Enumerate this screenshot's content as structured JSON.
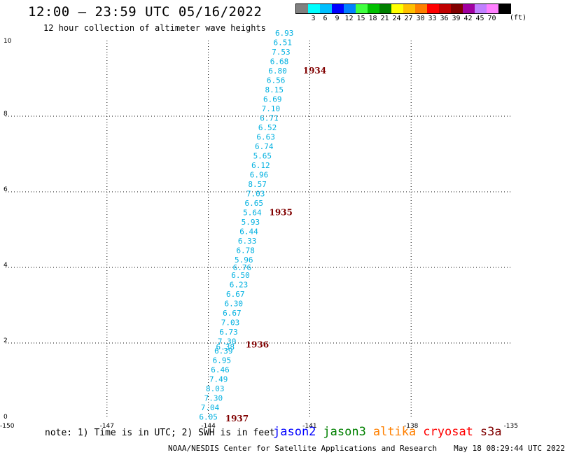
{
  "header": {
    "title": "12:00 – 23:59 UTC 05/16/2022",
    "subtitle": "12 hour collection of altimeter wave heights"
  },
  "color_scale": {
    "colors": [
      "#808080",
      "#00ffff",
      "#00bfff",
      "#0000ff",
      "#0080ff",
      "#40ff40",
      "#00c000",
      "#008000",
      "#ffff00",
      "#ffc000",
      "#ff8000",
      "#ff0000",
      "#c00000",
      "#800000",
      "#a000a0",
      "#c080ff",
      "#ff80ff",
      "#000000"
    ],
    "labels": [
      "3",
      "6",
      "9",
      "12",
      "15",
      "18",
      "21",
      "24",
      "27",
      "30",
      "33",
      "36",
      "39",
      "42",
      "45",
      "70"
    ],
    "unit": "(ft)"
  },
  "chart_data": {
    "type": "scatter",
    "xlim": [
      -150,
      -135
    ],
    "ylim": [
      0,
      10
    ],
    "x_ticks": [
      -150,
      -147,
      -144,
      -141,
      -138,
      -135
    ],
    "x_tick_labels": [
      "-150",
      "-147",
      "-144",
      "-141",
      "-138",
      "-135"
    ],
    "y_ticks": [
      0,
      2,
      4,
      6,
      8,
      10
    ],
    "y_tick_labels": [
      "0",
      "2",
      "4",
      "6",
      "8",
      "10"
    ],
    "grid": true,
    "series": [
      {
        "name": "jason2",
        "points": [
          {
            "x": -144.0,
            "y": 0.05,
            "label": "6.05"
          },
          {
            "x": -143.95,
            "y": 0.3,
            "label": "7.04"
          },
          {
            "x": -143.85,
            "y": 0.55,
            "label": "7.30"
          },
          {
            "x": -143.8,
            "y": 0.8,
            "label": "8.03"
          },
          {
            "x": -143.7,
            "y": 1.05,
            "label": "7.49"
          },
          {
            "x": -143.65,
            "y": 1.3,
            "label": "6.46"
          },
          {
            "x": -143.6,
            "y": 1.55,
            "label": "6.95"
          },
          {
            "x": -143.55,
            "y": 1.8,
            "label": "6.39"
          },
          {
            "x": -143.5,
            "y": 1.9,
            "label": "6.38"
          },
          {
            "x": -143.45,
            "y": 2.05,
            "label": "7.30"
          },
          {
            "x": -143.4,
            "y": 2.3,
            "label": "6.73"
          },
          {
            "x": -143.35,
            "y": 2.55,
            "label": "7.03"
          },
          {
            "x": -143.3,
            "y": 2.8,
            "label": "6.67"
          },
          {
            "x": -143.25,
            "y": 3.05,
            "label": "6.30"
          },
          {
            "x": -143.2,
            "y": 3.3,
            "label": "6.67"
          },
          {
            "x": -143.1,
            "y": 3.55,
            "label": "6.23"
          },
          {
            "x": -143.05,
            "y": 3.8,
            "label": "6.50"
          },
          {
            "x": -143.0,
            "y": 4.0,
            "label": "6.76"
          },
          {
            "x": -142.95,
            "y": 4.2,
            "label": "5.96"
          },
          {
            "x": -142.9,
            "y": 4.45,
            "label": "6.78"
          },
          {
            "x": -142.85,
            "y": 4.7,
            "label": "6.33"
          },
          {
            "x": -142.8,
            "y": 4.95,
            "label": "6.44"
          },
          {
            "x": -142.75,
            "y": 5.2,
            "label": "5.93"
          },
          {
            "x": -142.7,
            "y": 5.45,
            "label": "5.64"
          },
          {
            "x": -142.65,
            "y": 5.7,
            "label": "6.65"
          },
          {
            "x": -142.6,
            "y": 5.95,
            "label": "7.03"
          },
          {
            "x": -142.55,
            "y": 6.2,
            "label": "8.57"
          },
          {
            "x": -142.5,
            "y": 6.45,
            "label": "6.96"
          },
          {
            "x": -142.45,
            "y": 6.7,
            "label": "6.12"
          },
          {
            "x": -142.4,
            "y": 6.95,
            "label": "5.65"
          },
          {
            "x": -142.35,
            "y": 7.2,
            "label": "6.74"
          },
          {
            "x": -142.3,
            "y": 7.45,
            "label": "6.63"
          },
          {
            "x": -142.25,
            "y": 7.7,
            "label": "6.52"
          },
          {
            "x": -142.2,
            "y": 7.95,
            "label": "6.71"
          },
          {
            "x": -142.15,
            "y": 8.2,
            "label": "7.10"
          },
          {
            "x": -142.1,
            "y": 8.45,
            "label": "6.69"
          },
          {
            "x": -142.05,
            "y": 8.7,
            "label": "8.15"
          },
          {
            "x": -142.0,
            "y": 8.95,
            "label": "6.56"
          },
          {
            "x": -141.95,
            "y": 9.2,
            "label": "6.80"
          },
          {
            "x": -141.9,
            "y": 9.45,
            "label": "6.68"
          },
          {
            "x": -141.85,
            "y": 9.7,
            "label": "7.53"
          },
          {
            "x": -141.8,
            "y": 9.95,
            "label": "6.51"
          },
          {
            "x": -141.75,
            "y": 10.2,
            "label": "6.93"
          }
        ]
      }
    ],
    "time_labels": [
      {
        "x": -141.2,
        "y": 9.2,
        "text": "1934"
      },
      {
        "x": -142.2,
        "y": 5.45,
        "text": "1935"
      },
      {
        "x": -142.9,
        "y": 1.95,
        "text": "1936"
      },
      {
        "x": -143.5,
        "y": 0.0,
        "text": "1937"
      }
    ]
  },
  "note": "note: 1) Time is in UTC; 2) SWH is in feet",
  "legend": [
    {
      "name": "jason2",
      "color": "#0000ff"
    },
    {
      "name": "jason3",
      "color": "#008000"
    },
    {
      "name": "altika",
      "color": "#ff8000"
    },
    {
      "name": "cryosat",
      "color": "#ff0000"
    },
    {
      "name": "s3a",
      "color": "#800000"
    }
  ],
  "footer": {
    "credit": "NOAA/NESDIS Center for Satellite Applications and Research",
    "timestamp": "May 18 08:29:44 UTC 2022"
  },
  "colors": {
    "value_label": "#00b0e0",
    "time_label": "#800000",
    "grid": "#000000"
  }
}
